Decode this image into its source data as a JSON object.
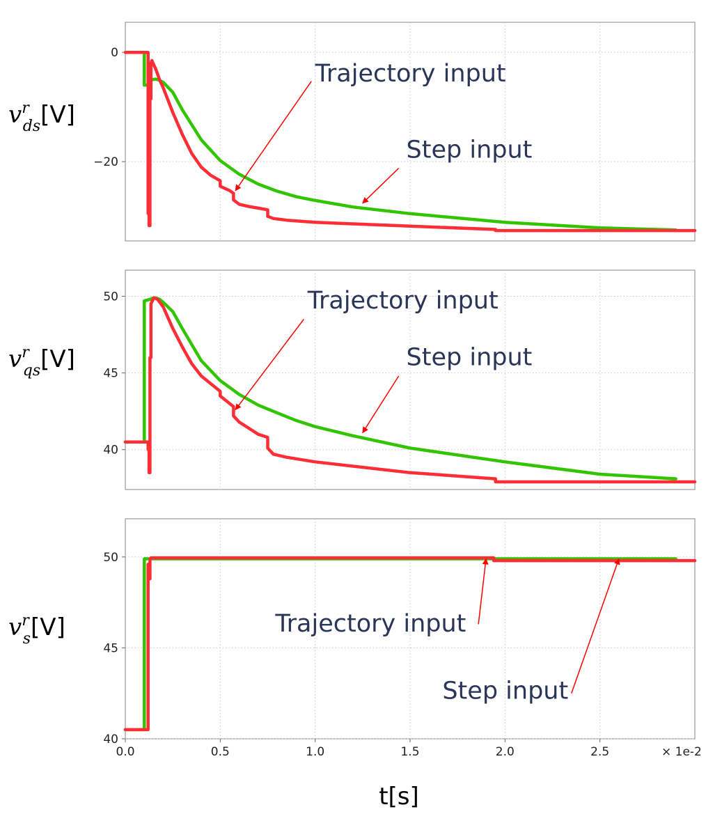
{
  "chart_data": {
    "type": "line",
    "xlabel": "t[s]",
    "x_multiplier_label": "× 1e-2",
    "xlim": [
      0,
      3.0
    ],
    "xticks": [
      "0.0",
      "0.5",
      "1.0",
      "1.5",
      "2.0",
      "2.5"
    ],
    "colors": {
      "step": "#33c400",
      "trajectory": "#ff2d36",
      "arrow": "#ff0000",
      "annotation_text": "#2a3558"
    },
    "panels": [
      {
        "ylabel_symbol": "v",
        "ylabel_sup": "r",
        "ylabel_sub": "ds",
        "ylabel_unit": "[V]",
        "ylim": [
          -34.5,
          5.5
        ],
        "yticks": [
          "0",
          "−20"
        ],
        "ytick_values": [
          0,
          -20
        ],
        "series": [
          {
            "key": "step",
            "x": [
              0,
              0.1,
              0.1,
              0.103,
              0.106,
              0.109,
              0.112,
              0.115,
              0.118,
              0.12,
              0.123,
              0.126,
              0.13,
              0.14,
              0.16,
              0.18,
              0.2,
              0.25,
              0.3,
              0.4,
              0.5,
              0.6,
              0.7,
              0.8,
              0.9,
              1.0,
              1.2,
              1.5,
              2.0,
              2.5,
              2.9
            ],
            "y": [
              0,
              0,
              -6,
              -6,
              -6,
              -6,
              -6,
              -6,
              -6,
              -6,
              -6,
              -6,
              -5.5,
              -5,
              -4.9,
              -5.1,
              -5.5,
              -7.3,
              -10.5,
              -16,
              -19.8,
              -22.3,
              -24.1,
              -25.4,
              -26.4,
              -27.1,
              -28.3,
              -29.5,
              -31.1,
              -32.1,
              -32.5
            ]
          },
          {
            "key": "trajectory",
            "x": [
              0,
              0.12,
              0.12,
              0.125,
              0.125,
              0.13,
              0.13,
              0.135,
              0.135,
              0.14,
              0.15,
              0.16,
              0.17,
              0.18,
              0.2,
              0.25,
              0.3,
              0.35,
              0.4,
              0.45,
              0.5,
              0.5,
              0.55,
              0.57,
              0.57,
              0.6,
              0.65,
              0.7,
              0.75,
              0.75,
              0.78,
              0.85,
              1.0,
              1.5,
              1.95,
              1.95,
              2.5,
              3.0
            ],
            "y": [
              0,
              0,
              -29.5,
              -29.5,
              -31.7,
              -31.7,
              -8.5,
              -8.5,
              -2,
              -1.5,
              -2.3,
              -3,
              -4,
              -5,
              -6.5,
              -11,
              -15,
              -18.5,
              -21,
              -22.5,
              -23.5,
              -24.5,
              -25.3,
              -25.8,
              -27,
              -27.8,
              -28.2,
              -28.5,
              -28.8,
              -30,
              -30.4,
              -30.7,
              -31.1,
              -31.8,
              -32.4,
              -32.6,
              -32.6,
              -32.6
            ]
          }
        ],
        "annotations": [
          {
            "text": "Trajectory input",
            "data_x": 1.0,
            "data_y": -5.3,
            "ax": 0.98,
            "ay": -5.3,
            "tx": 0.58,
            "ty": -25.3
          },
          {
            "text": "Step input",
            "data_x": 1.48,
            "data_y": -19.3,
            "ax": 1.44,
            "ay": -21.2,
            "tx": 1.25,
            "ty": -27.6
          }
        ]
      },
      {
        "ylabel_symbol": "v",
        "ylabel_sup": "r",
        "ylabel_sub": "qs",
        "ylabel_unit": "[V]",
        "ylim": [
          37.4,
          51.7
        ],
        "yticks": [
          "50",
          "45",
          "40"
        ],
        "ytick_values": [
          50,
          45,
          40
        ],
        "series": [
          {
            "key": "step",
            "x": [
              0,
              0.1,
              0.1,
              0.13,
              0.15,
              0.16,
              0.18,
              0.2,
              0.25,
              0.3,
              0.4,
              0.5,
              0.6,
              0.7,
              0.8,
              0.9,
              1.0,
              1.2,
              1.5,
              2.0,
              2.5,
              2.9
            ],
            "y": [
              40.5,
              40.5,
              49.7,
              49.8,
              49.9,
              49.9,
              49.8,
              49.6,
              49,
              47.9,
              45.8,
              44.5,
              43.6,
              42.9,
              42.4,
              41.9,
              41.5,
              40.9,
              40.1,
              39.2,
              38.4,
              38.1
            ]
          },
          {
            "key": "trajectory",
            "x": [
              0,
              0.12,
              0.12,
              0.125,
              0.125,
              0.13,
              0.13,
              0.135,
              0.135,
              0.15,
              0.17,
              0.2,
              0.25,
              0.3,
              0.35,
              0.4,
              0.45,
              0.5,
              0.5,
              0.57,
              0.57,
              0.6,
              0.65,
              0.7,
              0.75,
              0.75,
              0.78,
              0.85,
              1.0,
              1.5,
              1.95,
              1.95,
              2.5,
              3.0
            ],
            "y": [
              40.5,
              40.5,
              40,
              40,
              38.5,
              38.5,
              46,
              46,
              49.5,
              49.9,
              49.8,
              49.3,
              47.9,
              46.7,
              45.6,
              44.8,
              44.3,
              43.8,
              43.5,
              42.8,
              42.2,
              41.8,
              41.4,
              41,
              40.8,
              40.1,
              39.7,
              39.5,
              39.2,
              38.5,
              38.1,
              37.9,
              37.9,
              37.9
            ]
          }
        ],
        "annotations": [
          {
            "text": "Trajectory input",
            "data_x": 0.96,
            "data_y": 49.2,
            "ax": 0.94,
            "ay": 48.5,
            "tx": 0.58,
            "ty": 42.6
          },
          {
            "text": "Step input",
            "data_x": 1.48,
            "data_y": 45.5,
            "ax": 1.44,
            "ay": 44.8,
            "tx": 1.25,
            "ty": 41.1
          }
        ]
      },
      {
        "ylabel_symbol": "v",
        "ylabel_sup": "r",
        "ylabel_sub": "s",
        "ylabel_unit": "[V]",
        "ylim": [
          40,
          52.1
        ],
        "yticks": [
          "50",
          "45",
          "40"
        ],
        "ytick_values": [
          50,
          45,
          40
        ],
        "series": [
          {
            "key": "step",
            "x": [
              0,
              0.1,
              0.1,
              2.9
            ],
            "y": [
              40.5,
              40.5,
              49.9,
              49.9
            ]
          },
          {
            "key": "trajectory",
            "x": [
              0,
              0.12,
              0.12,
              0.125,
              0.125,
              0.13,
              0.13,
              0.135,
              0.135,
              1.94,
              1.94,
              3.0
            ],
            "y": [
              40.5,
              40.5,
              49.6,
              49.6,
              48.8,
              48.8,
              49.9,
              49.9,
              49.95,
              49.95,
              49.8,
              49.8
            ]
          }
        ],
        "annotations": [
          {
            "text": "Trajectory input",
            "data_x": 0.79,
            "data_y": 45.9,
            "ax": 1.86,
            "ay": 46.3,
            "tx": 1.9,
            "ty": 49.9
          },
          {
            "text": "Step input",
            "data_x": 1.67,
            "data_y": 42.2,
            "ax": 2.35,
            "ay": 42.5,
            "tx": 2.6,
            "ty": 49.9
          }
        ]
      }
    ]
  }
}
